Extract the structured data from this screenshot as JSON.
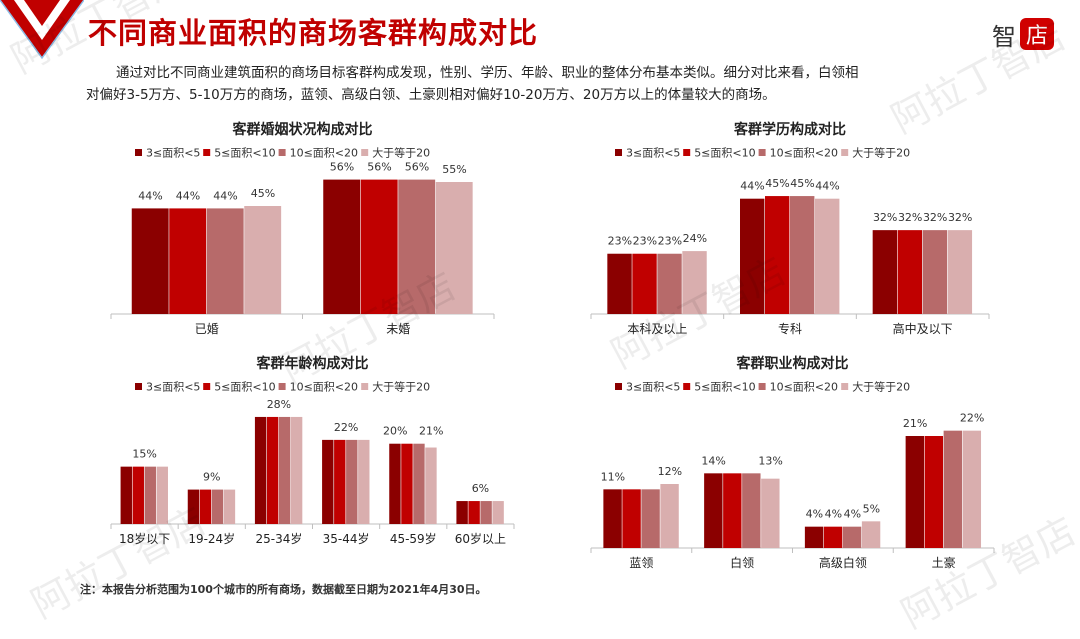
{
  "header": {
    "title": "不同商业面积的商场客群构成对比",
    "brand_char1": "智",
    "brand_char2": "店"
  },
  "intro": {
    "line1": "通过对比不同商业建筑面积的商场目标客群构成发现，性别、学历、年龄、职业的整体分布基本类似。细分对比来看，白领相",
    "line2": "对偏好3-5万方、5-10万方的商场，蓝领、高级白领、土豪则相对偏好10-20万方、20万方以上的体量较大的商场。"
  },
  "footnote": "注：本报告分析范围为100个城市的所有商场，数据截至日期为2021年4月30日。",
  "watermark_text": "阿拉丁智店",
  "colors": {
    "accent": "#c00000",
    "series": [
      "#8b0000",
      "#c00000",
      "#b76a6a",
      "#d9aeae"
    ]
  },
  "chart_data": [
    {
      "id": "marriage",
      "type": "bar",
      "title": "客群婚姻状况构成对比",
      "categories": [
        "已婚",
        "未婚"
      ],
      "series": [
        {
          "name": "3≤面积<5",
          "values": [
            44,
            56
          ]
        },
        {
          "name": "5≤面积<10",
          "values": [
            44,
            56
          ]
        },
        {
          "name": "10≤面积<20",
          "values": [
            44,
            56
          ]
        },
        {
          "name": "大于等于20",
          "values": [
            45,
            55
          ]
        }
      ],
      "value_labels": [
        [
          "44%",
          "44%",
          "44%",
          "45%"
        ],
        [
          "56%",
          "56%",
          "56%",
          "55%"
        ]
      ],
      "ylim": [
        0,
        70
      ],
      "legend": "top",
      "grid": false
    },
    {
      "id": "education",
      "type": "bar",
      "title": "客群学历构成对比",
      "categories": [
        "本科及以上",
        "专科",
        "高中及以下"
      ],
      "series": [
        {
          "name": "3≤面积<5",
          "values": [
            23,
            44,
            32
          ]
        },
        {
          "name": "5≤面积<10",
          "values": [
            23,
            45,
            32
          ]
        },
        {
          "name": "10≤面积<20",
          "values": [
            23,
            45,
            32
          ]
        },
        {
          "name": "大于等于20",
          "values": [
            24,
            44,
            32
          ]
        }
      ],
      "value_labels": [
        [
          "23%",
          "23%",
          "23%",
          "24%"
        ],
        [
          "44%",
          "45%",
          "45%",
          "44%"
        ],
        [
          "32%",
          "32%",
          "32%",
          "32%"
        ]
      ],
      "ylim": [
        0,
        58
      ],
      "legend": "top",
      "grid": false
    },
    {
      "id": "age",
      "type": "bar",
      "title": "客群年龄构成对比",
      "categories": [
        "18岁以下",
        "19-24岁",
        "25-34岁",
        "35-44岁",
        "45-59岁",
        "60岁以上"
      ],
      "series": [
        {
          "name": "3≤面积<5",
          "values": [
            15,
            9,
            28,
            22,
            21,
            6
          ]
        },
        {
          "name": "5≤面积<10",
          "values": [
            15,
            9,
            28,
            22,
            21,
            6
          ]
        },
        {
          "name": "10≤面积<20",
          "values": [
            15,
            9,
            28,
            22,
            21,
            6
          ]
        },
        {
          "name": "大于等于20",
          "values": [
            15,
            9,
            28,
            22,
            20,
            6
          ]
        }
      ],
      "value_labels": [
        [
          "15%"
        ],
        [
          "9%"
        ],
        [
          "28%"
        ],
        [
          "22%"
        ],
        [
          "20%",
          "21%"
        ],
        [
          "6%"
        ]
      ],
      "ylim": [
        0,
        34
      ],
      "legend": "top",
      "grid": false
    },
    {
      "id": "occupation",
      "type": "bar",
      "title": "客群职业构成对比",
      "categories": [
        "蓝领",
        "白领",
        "高级白领",
        "土豪"
      ],
      "series": [
        {
          "name": "3≤面积<5",
          "values": [
            11,
            14,
            4,
            21
          ]
        },
        {
          "name": "5≤面积<10",
          "values": [
            11,
            14,
            4,
            21
          ]
        },
        {
          "name": "10≤面积<20",
          "values": [
            11,
            14,
            4,
            22
          ]
        },
        {
          "name": "大于等于20",
          "values": [
            12,
            13,
            5,
            22
          ]
        }
      ],
      "value_labels": [
        [
          "11%",
          "12%"
        ],
        [
          "14%",
          "13%"
        ],
        [
          "4%",
          "4%",
          "4%",
          "5%"
        ],
        [
          "21%",
          "22%"
        ]
      ],
      "ylim": [
        0,
        27
      ],
      "legend": "top",
      "grid": false
    }
  ]
}
